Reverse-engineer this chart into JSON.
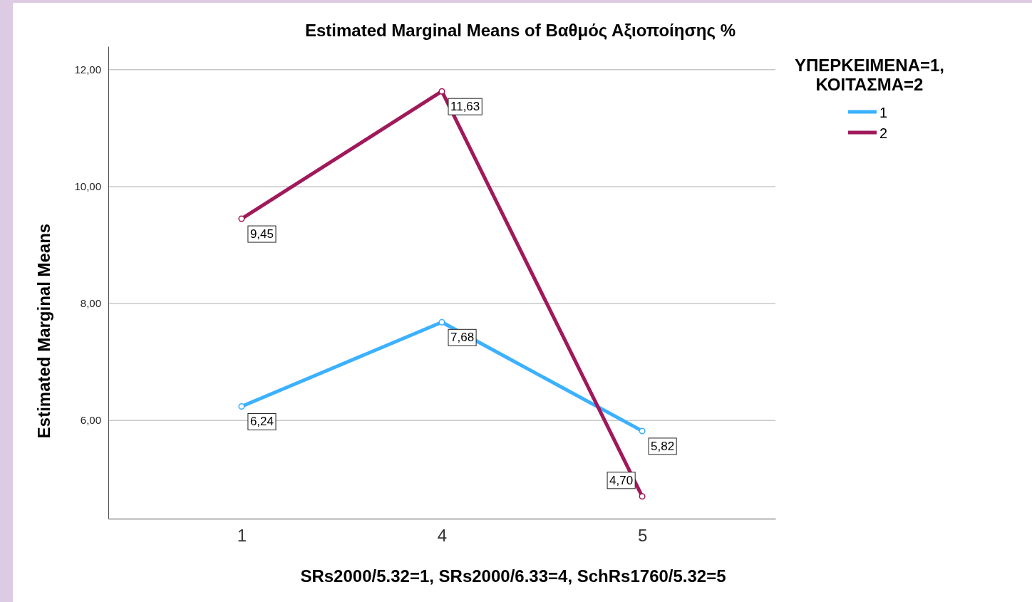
{
  "chart_data": {
    "type": "line",
    "title": "Estimated Marginal Means of Βαθμός Αξιοποίησης %",
    "xlabel": "SRs2000/5.32=1, SRs2000/6.33=4, SchRs1760/5.32=5",
    "ylabel": "Estimated Marginal Means",
    "legend_title": "ΥΠΕΡΚΕΙΜΕΝΑ=1,\nΚΟΙΤΑΣΜΑ=2",
    "categories": [
      "1",
      "4",
      "5"
    ],
    "series": [
      {
        "name": "1",
        "color": "#3cb1ff",
        "values": [
          6.24,
          7.68,
          5.82
        ],
        "value_labels": [
          "6,24",
          "7,68",
          "5,82"
        ]
      },
      {
        "name": "2",
        "color": "#a0195a",
        "values": [
          9.45,
          11.63,
          4.7
        ],
        "value_labels": [
          "9,45",
          "11,63",
          "4,70"
        ]
      }
    ],
    "ylim": [
      4.32,
      12.4
    ],
    "yticks": [
      {
        "value": 6,
        "label": "6,00"
      },
      {
        "value": 8,
        "label": "8,00"
      },
      {
        "value": 10,
        "label": "10,00"
      },
      {
        "value": 12,
        "label": "12,00"
      }
    ],
    "grid": "y",
    "legend": "top right",
    "marker": "circle",
    "line_style": "solid"
  }
}
